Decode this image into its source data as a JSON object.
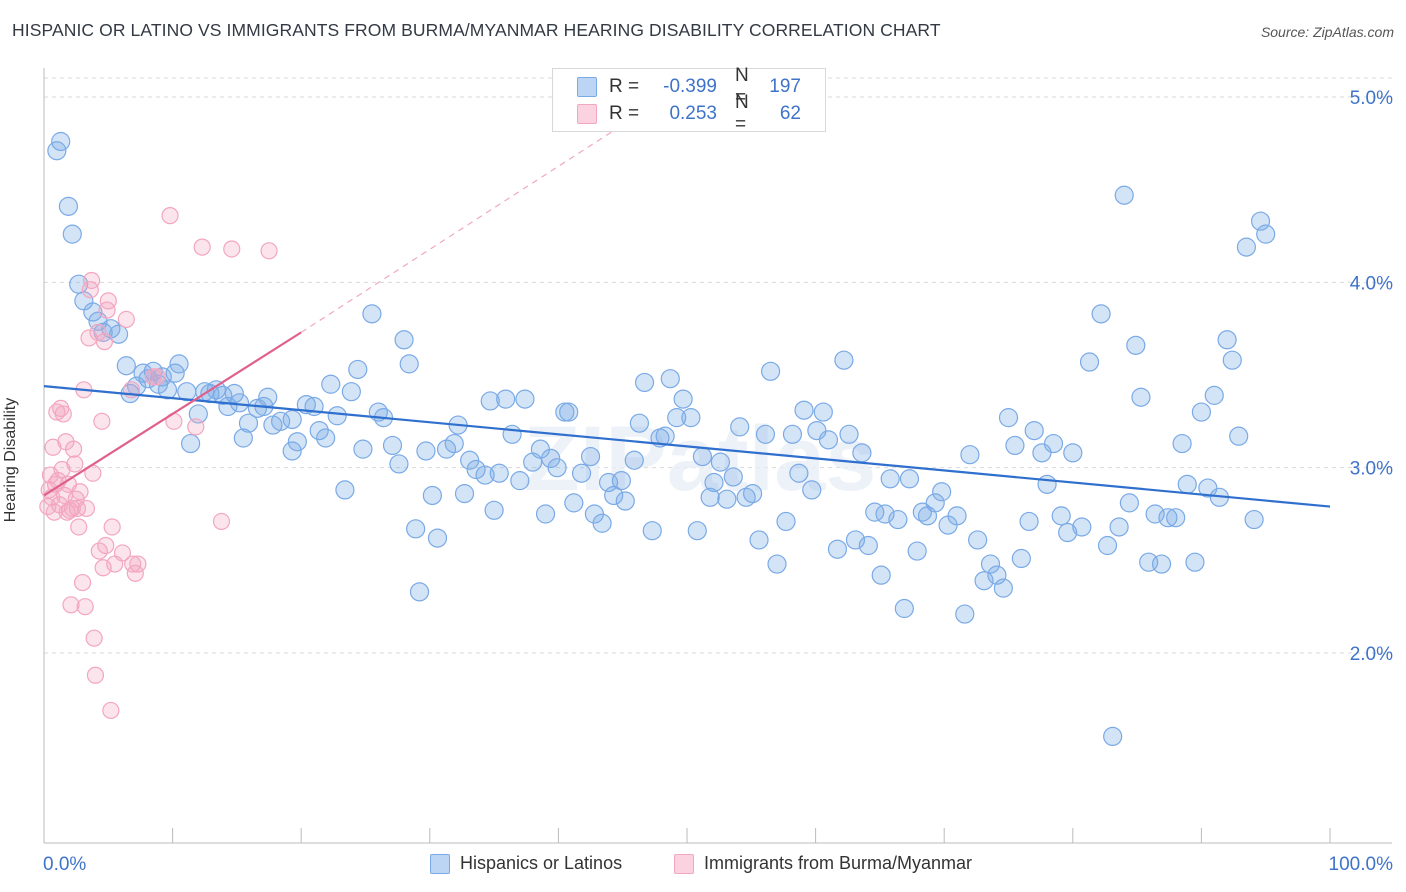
{
  "title": "HISPANIC OR LATINO VS IMMIGRANTS FROM BURMA/MYANMAR HEARING DISABILITY CORRELATION CHART",
  "source": "Source: ZipAtlas.com",
  "watermark": "ZIPatlas",
  "stats": [
    {
      "r_label": "R =",
      "r_value": "-0.399",
      "n_label": "N =",
      "n_value": "197",
      "color": "#7aaae6"
    },
    {
      "r_label": "R =",
      "r_value": "0.253",
      "n_label": "N =",
      "n_value": "62",
      "color": "#f3a6bf"
    }
  ],
  "chart_data": {
    "type": "scatter",
    "title": "HISPANIC OR LATINO VS IMMIGRANTS FROM BURMA/MYANMAR HEARING DISABILITY CORRELATION CHART",
    "xlabel": "",
    "ylabel": "Hearing Disability",
    "xlim": [
      0,
      100
    ],
    "ylim": [
      0.95,
      5.2
    ],
    "x_tick_labels": [
      "0.0%",
      "100.0%"
    ],
    "y_ticks": [
      2.0,
      3.0,
      4.0,
      5.0
    ],
    "y_tick_labels": [
      "2.0%",
      "3.0%",
      "4.0%",
      "5.0%"
    ],
    "grid": true,
    "legend_position": "bottom",
    "series": [
      {
        "name": "Hispanics or Latinos",
        "color": "#7aaae6",
        "line_color": "#2f6fce",
        "trend": {
          "x": [
            0,
            100
          ],
          "y": [
            3.44,
            2.79
          ]
        },
        "points": [
          [
            1.0,
            4.71
          ],
          [
            1.3,
            4.76
          ],
          [
            1.9,
            4.41
          ],
          [
            2.2,
            4.26
          ],
          [
            2.7,
            3.99
          ],
          [
            3.1,
            3.9
          ],
          [
            3.8,
            3.84
          ],
          [
            4.2,
            3.79
          ],
          [
            4.6,
            3.73
          ],
          [
            5.2,
            3.75
          ],
          [
            5.8,
            3.72
          ],
          [
            6.4,
            3.55
          ],
          [
            6.7,
            3.4
          ],
          [
            7.2,
            3.44
          ],
          [
            7.7,
            3.51
          ],
          [
            8.1,
            3.48
          ],
          [
            8.5,
            3.52
          ],
          [
            8.9,
            3.45
          ],
          [
            9.2,
            3.49
          ],
          [
            9.6,
            3.42
          ],
          [
            10.2,
            3.51
          ],
          [
            10.5,
            3.56
          ],
          [
            11.1,
            3.41
          ],
          [
            11.4,
            3.13
          ],
          [
            12.0,
            3.29
          ],
          [
            12.5,
            3.41
          ],
          [
            12.9,
            3.4
          ],
          [
            13.4,
            3.42
          ],
          [
            13.9,
            3.39
          ],
          [
            14.3,
            3.33
          ],
          [
            14.8,
            3.4
          ],
          [
            15.2,
            3.35
          ],
          [
            15.5,
            3.16
          ],
          [
            15.9,
            3.24
          ],
          [
            16.6,
            3.32
          ],
          [
            17.1,
            3.33
          ],
          [
            17.4,
            3.38
          ],
          [
            17.8,
            3.23
          ],
          [
            18.4,
            3.25
          ],
          [
            19.3,
            3.26
          ],
          [
            19.3,
            3.09
          ],
          [
            19.7,
            3.14
          ],
          [
            20.4,
            3.34
          ],
          [
            21.0,
            3.33
          ],
          [
            21.4,
            3.2
          ],
          [
            21.9,
            3.16
          ],
          [
            22.3,
            3.45
          ],
          [
            22.8,
            3.28
          ],
          [
            23.4,
            2.88
          ],
          [
            23.9,
            3.41
          ],
          [
            24.4,
            3.53
          ],
          [
            24.8,
            3.1
          ],
          [
            25.5,
            3.83
          ],
          [
            26.0,
            3.3
          ],
          [
            26.4,
            3.27
          ],
          [
            27.1,
            3.12
          ],
          [
            27.6,
            3.02
          ],
          [
            28.0,
            3.69
          ],
          [
            28.4,
            3.56
          ],
          [
            28.9,
            2.67
          ],
          [
            29.2,
            2.33
          ],
          [
            29.7,
            3.09
          ],
          [
            30.2,
            2.85
          ],
          [
            30.6,
            2.62
          ],
          [
            31.3,
            3.1
          ],
          [
            31.9,
            3.13
          ],
          [
            32.2,
            3.23
          ],
          [
            32.7,
            2.86
          ],
          [
            33.1,
            3.04
          ],
          [
            33.6,
            2.99
          ],
          [
            34.3,
            2.96
          ],
          [
            34.7,
            3.36
          ],
          [
            35.0,
            2.77
          ],
          [
            35.4,
            2.97
          ],
          [
            35.9,
            3.37
          ],
          [
            36.4,
            3.18
          ],
          [
            37.0,
            2.93
          ],
          [
            37.4,
            3.37
          ],
          [
            38.0,
            3.03
          ],
          [
            38.6,
            3.1
          ],
          [
            39.0,
            2.75
          ],
          [
            39.4,
            3.05
          ],
          [
            39.9,
            3.0
          ],
          [
            40.5,
            3.3
          ],
          [
            40.8,
            3.3
          ],
          [
            41.2,
            2.81
          ],
          [
            41.8,
            2.97
          ],
          [
            42.5,
            3.06
          ],
          [
            42.8,
            2.75
          ],
          [
            43.4,
            2.7
          ],
          [
            43.9,
            2.92
          ],
          [
            44.3,
            2.85
          ],
          [
            44.9,
            2.93
          ],
          [
            45.2,
            2.82
          ],
          [
            45.9,
            3.04
          ],
          [
            46.3,
            3.24
          ],
          [
            46.7,
            3.46
          ],
          [
            47.3,
            2.66
          ],
          [
            47.9,
            3.16
          ],
          [
            48.3,
            3.17
          ],
          [
            48.7,
            3.48
          ],
          [
            49.2,
            3.27
          ],
          [
            49.7,
            3.37
          ],
          [
            50.3,
            3.27
          ],
          [
            50.8,
            2.66
          ],
          [
            51.2,
            3.06
          ],
          [
            51.8,
            2.84
          ],
          [
            52.1,
            2.92
          ],
          [
            52.6,
            3.03
          ],
          [
            53.1,
            2.83
          ],
          [
            53.6,
            2.95
          ],
          [
            54.1,
            3.22
          ],
          [
            54.6,
            2.84
          ],
          [
            55.1,
            2.86
          ],
          [
            55.6,
            2.61
          ],
          [
            56.1,
            3.18
          ],
          [
            56.5,
            3.52
          ],
          [
            57.0,
            2.48
          ],
          [
            57.7,
            2.71
          ],
          [
            58.2,
            3.18
          ],
          [
            58.7,
            2.97
          ],
          [
            59.1,
            3.31
          ],
          [
            59.7,
            2.88
          ],
          [
            60.1,
            3.2
          ],
          [
            60.6,
            3.3
          ],
          [
            61.0,
            3.15
          ],
          [
            61.7,
            2.56
          ],
          [
            62.2,
            3.58
          ],
          [
            62.6,
            3.18
          ],
          [
            63.1,
            2.61
          ],
          [
            63.6,
            3.08
          ],
          [
            64.1,
            2.58
          ],
          [
            64.6,
            2.76
          ],
          [
            65.1,
            2.42
          ],
          [
            65.4,
            2.75
          ],
          [
            65.8,
            2.94
          ],
          [
            66.4,
            2.72
          ],
          [
            66.9,
            2.24
          ],
          [
            67.3,
            2.94
          ],
          [
            67.9,
            2.55
          ],
          [
            68.3,
            2.76
          ],
          [
            68.7,
            2.74
          ],
          [
            69.3,
            2.81
          ],
          [
            69.8,
            2.87
          ],
          [
            70.3,
            2.69
          ],
          [
            71.0,
            2.74
          ],
          [
            71.6,
            2.21
          ],
          [
            72.0,
            3.07
          ],
          [
            72.6,
            2.61
          ],
          [
            73.1,
            2.39
          ],
          [
            73.6,
            2.48
          ],
          [
            74.1,
            2.42
          ],
          [
            74.6,
            2.35
          ],
          [
            75.0,
            3.27
          ],
          [
            75.5,
            3.12
          ],
          [
            76.0,
            2.51
          ],
          [
            76.6,
            2.71
          ],
          [
            77.0,
            3.2
          ],
          [
            77.6,
            3.08
          ],
          [
            78.0,
            2.91
          ],
          [
            78.5,
            3.13
          ],
          [
            79.1,
            2.74
          ],
          [
            79.6,
            2.65
          ],
          [
            80.0,
            3.08
          ],
          [
            80.7,
            2.68
          ],
          [
            81.3,
            3.57
          ],
          [
            82.2,
            3.83
          ],
          [
            82.7,
            2.58
          ],
          [
            83.1,
            1.55
          ],
          [
            83.6,
            2.68
          ],
          [
            84.0,
            4.47
          ],
          [
            84.4,
            2.81
          ],
          [
            84.9,
            3.66
          ],
          [
            85.3,
            3.38
          ],
          [
            85.9,
            2.49
          ],
          [
            86.4,
            2.75
          ],
          [
            86.9,
            2.48
          ],
          [
            87.4,
            2.73
          ],
          [
            88.0,
            2.73
          ],
          [
            88.5,
            3.13
          ],
          [
            88.9,
            2.91
          ],
          [
            89.5,
            2.49
          ],
          [
            90.0,
            3.3
          ],
          [
            90.5,
            2.89
          ],
          [
            91.0,
            3.39
          ],
          [
            91.4,
            2.84
          ],
          [
            92.0,
            3.69
          ],
          [
            92.4,
            3.58
          ],
          [
            92.9,
            3.17
          ],
          [
            93.5,
            4.19
          ],
          [
            94.1,
            2.72
          ],
          [
            94.6,
            4.33
          ],
          [
            95.0,
            4.26
          ]
        ]
      },
      {
        "name": "Immigrants from Burma/Myanmar",
        "color": "#f3a6bf",
        "line_color": "#e0608c",
        "trend": {
          "x": [
            0,
            20
          ],
          "y": [
            2.85,
            3.73
          ]
        },
        "trend_extension": {
          "x": [
            20,
            45
          ],
          "y": [
            3.73,
            4.85
          ]
        },
        "points": [
          [
            0.3,
            2.79
          ],
          [
            0.4,
            2.88
          ],
          [
            0.5,
            2.96
          ],
          [
            0.6,
            2.84
          ],
          [
            0.7,
            3.11
          ],
          [
            0.8,
            2.76
          ],
          [
            0.9,
            2.91
          ],
          [
            1.0,
            3.3
          ],
          [
            1.1,
            2.93
          ],
          [
            1.2,
            2.8
          ],
          [
            1.3,
            3.32
          ],
          [
            1.4,
            2.99
          ],
          [
            1.5,
            3.29
          ],
          [
            1.6,
            2.85
          ],
          [
            1.7,
            3.14
          ],
          [
            1.8,
            2.76
          ],
          [
            1.9,
            2.91
          ],
          [
            2.0,
            2.77
          ],
          [
            2.1,
            2.26
          ],
          [
            2.2,
            2.78
          ],
          [
            2.3,
            3.1
          ],
          [
            2.4,
            3.02
          ],
          [
            2.5,
            2.83
          ],
          [
            2.6,
            2.78
          ],
          [
            2.7,
            2.68
          ],
          [
            2.8,
            2.87
          ],
          [
            3.0,
            2.38
          ],
          [
            3.1,
            3.42
          ],
          [
            3.2,
            2.25
          ],
          [
            3.3,
            2.78
          ],
          [
            3.5,
            3.7
          ],
          [
            3.6,
            3.96
          ],
          [
            3.7,
            4.01
          ],
          [
            3.8,
            2.97
          ],
          [
            3.9,
            2.08
          ],
          [
            4.0,
            1.88
          ],
          [
            4.2,
            3.73
          ],
          [
            4.3,
            2.55
          ],
          [
            4.5,
            3.25
          ],
          [
            4.6,
            2.46
          ],
          [
            4.7,
            3.68
          ],
          [
            4.8,
            2.58
          ],
          [
            4.9,
            3.85
          ],
          [
            5.0,
            3.9
          ],
          [
            5.2,
            1.69
          ],
          [
            5.3,
            2.68
          ],
          [
            5.5,
            2.48
          ],
          [
            6.1,
            2.54
          ],
          [
            6.4,
            3.8
          ],
          [
            6.8,
            3.42
          ],
          [
            6.9,
            2.48
          ],
          [
            7.1,
            2.43
          ],
          [
            7.3,
            2.48
          ],
          [
            8.5,
            3.49
          ],
          [
            8.8,
            3.49
          ],
          [
            9.8,
            4.36
          ],
          [
            10.1,
            3.25
          ],
          [
            11.8,
            3.22
          ],
          [
            12.3,
            4.19
          ],
          [
            13.8,
            2.71
          ],
          [
            14.6,
            4.18
          ],
          [
            17.5,
            4.17
          ]
        ]
      }
    ]
  },
  "x_axis": {
    "left_label": "0.0%",
    "right_label": "100.0%"
  },
  "y_axis": {
    "label": "Hearing Disability",
    "ticks": [
      "2.0%",
      "3.0%",
      "4.0%",
      "5.0%"
    ]
  },
  "legend": [
    {
      "label": "Hispanics or Latinos",
      "color": "#7aaae6"
    },
    {
      "label": "Immigrants from Burma/Myanmar",
      "color": "#f3a6bf"
    }
  ]
}
